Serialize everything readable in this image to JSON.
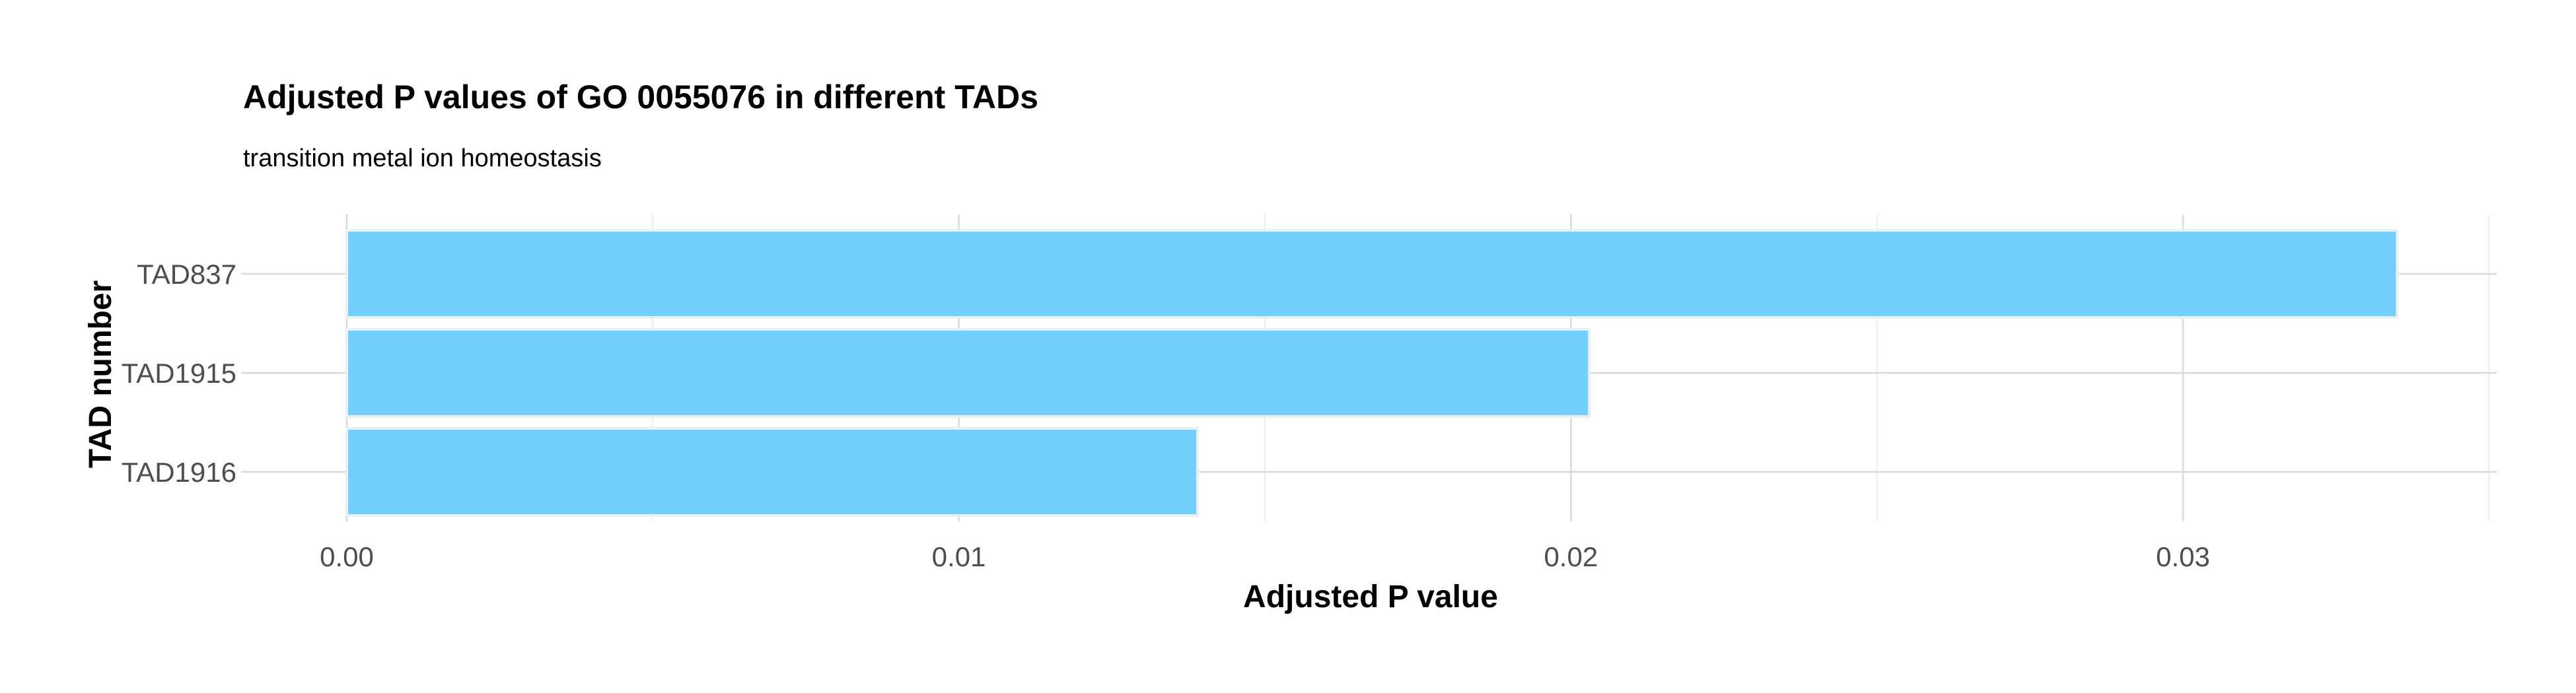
{
  "chart_data": {
    "type": "bar",
    "orientation": "horizontal",
    "title": "Adjusted P values of GO 0055076 in different TADs",
    "subtitle": "transition metal ion homeostasis",
    "xlabel": "Adjusted P value",
    "ylabel": "TAD number",
    "categories": [
      "TAD837",
      "TAD1915",
      "TAD1916"
    ],
    "values": [
      0.0335,
      0.0203,
      0.0139
    ],
    "xlim": [
      0,
      0.0352
    ],
    "xticks": [
      0.0,
      0.01,
      0.02,
      0.03
    ],
    "xtick_labels": [
      "0.00",
      "0.01",
      "0.02",
      "0.03"
    ],
    "bar_color": "#73CEFC",
    "bar_outline": "#e8f1f8",
    "grid": true,
    "legend": "none"
  }
}
